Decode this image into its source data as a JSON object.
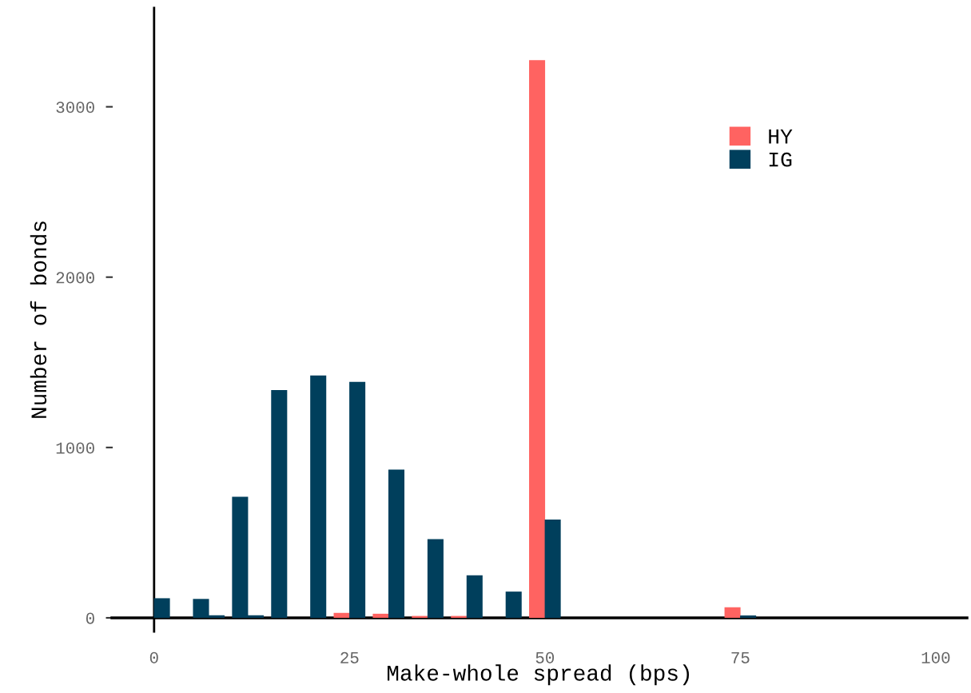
{
  "chart_data": {
    "type": "bar",
    "xlabel": "Make-whole spread (bps)",
    "ylabel": "Number of bonds",
    "series": [
      {
        "name": "HY",
        "color": "#ff6361",
        "x": [
          24,
          29,
          34,
          39,
          49,
          74
        ],
        "values": [
          29,
          24,
          11,
          11,
          3274,
          62
        ]
      },
      {
        "name": "IG",
        "color": "#003f5c",
        "x": [
          1,
          6,
          8,
          11,
          13,
          16,
          21,
          26,
          31,
          36,
          41,
          46,
          51,
          76
        ],
        "values": [
          115,
          111,
          15,
          711,
          15,
          1337,
          1423,
          1385,
          870,
          462,
          250,
          154,
          577,
          14
        ]
      }
    ],
    "xlim": [
      -5.4,
      104
    ],
    "ylim": [
      -80,
      3580
    ],
    "xticks": [
      0,
      25,
      50,
      75,
      100
    ],
    "yticks": [
      0,
      1000,
      2000,
      3000
    ],
    "legend": "top right"
  }
}
